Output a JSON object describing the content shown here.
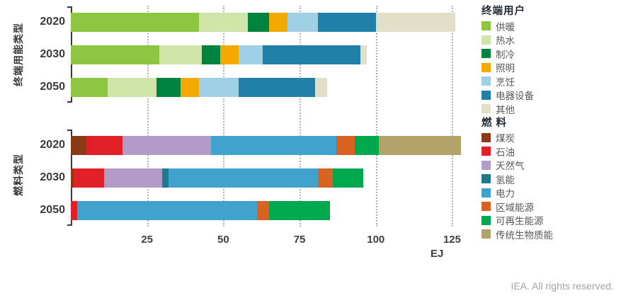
{
  "chart_data": {
    "type": "bar",
    "orientation": "horizontal",
    "stacked": true,
    "title": "",
    "xlabel": "EJ",
    "xlim": [
      0,
      130
    ],
    "xticks": [
      25,
      50,
      75,
      100,
      125
    ],
    "grid": "dotted-vertical",
    "legend_position": "right",
    "groups": [
      {
        "name": "终端用能类型",
        "categories": [
          "2020",
          "2030",
          "2050"
        ],
        "series": [
          {
            "name": "供暖",
            "color": "#8cc540",
            "values": [
              42,
              29,
              12
            ]
          },
          {
            "name": "热水",
            "color": "#cfe5a8",
            "values": [
              16,
              14,
              16
            ]
          },
          {
            "name": "制冷",
            "color": "#00833f",
            "values": [
              7,
              6,
              8
            ]
          },
          {
            "name": "照明",
            "color": "#f4a900",
            "values": [
              6,
              6,
              6
            ]
          },
          {
            "name": "烹饪",
            "color": "#9fd0e6",
            "values": [
              10,
              8,
              13
            ]
          },
          {
            "name": "电器设备",
            "color": "#2180a8",
            "values": [
              19,
              32,
              25
            ]
          },
          {
            "name": "其他",
            "color": "#e1dfc7",
            "values": [
              26,
              2,
              4
            ]
          }
        ]
      },
      {
        "name": "燃料类型",
        "categories": [
          "2020",
          "2030",
          "2050"
        ],
        "series": [
          {
            "name": "煤炭",
            "color": "#8a3a17",
            "values": [
              5,
              1,
              0
            ]
          },
          {
            "name": "石油",
            "color": "#e01f26",
            "values": [
              12,
              10,
              2
            ]
          },
          {
            "name": "天然气",
            "color": "#b29bc7",
            "values": [
              29,
              19,
              0
            ]
          },
          {
            "name": "氢能",
            "color": "#1d7a8a",
            "values": [
              0,
              2,
              0
            ]
          },
          {
            "name": "电力",
            "color": "#3fa3cd",
            "values": [
              41,
              49,
              59
            ]
          },
          {
            "name": "区域能源",
            "color": "#d96220",
            "values": [
              6,
              5,
              4
            ]
          },
          {
            "name": "可再生能源",
            "color": "#00a850",
            "values": [
              8,
              10,
              20
            ]
          },
          {
            "name": "传统生物质能",
            "color": "#b0a268",
            "values": [
              27,
              0,
              0
            ]
          }
        ]
      }
    ]
  },
  "legend": {
    "sections": [
      {
        "title": "终端用户",
        "group": 0
      },
      {
        "title": "燃 料",
        "group": 1
      }
    ]
  },
  "footer": {
    "credit": "IEA. All rights reserved."
  }
}
